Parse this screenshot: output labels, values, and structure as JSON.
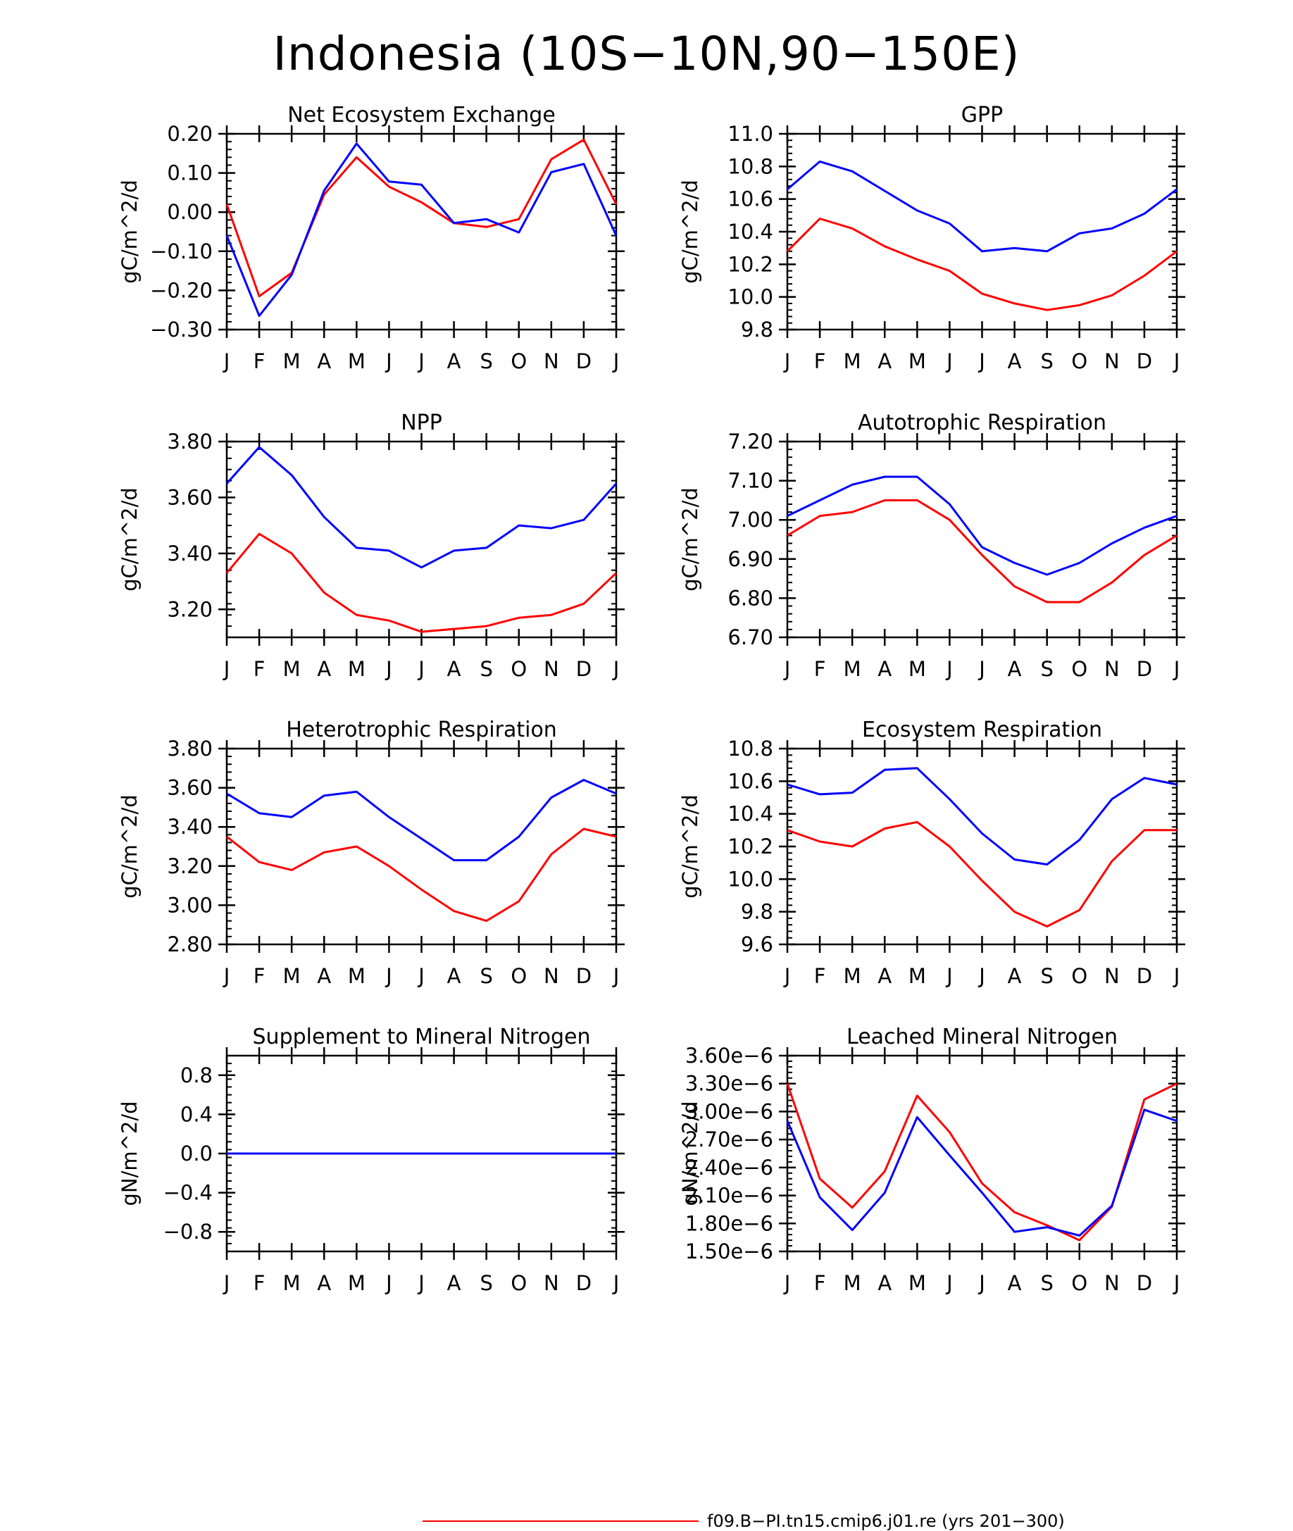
{
  "title": "Indonesia (10S−10N,90−150E)",
  "legend": {
    "label": "f09.B−PI.tn15.cmip6.j01.re (yrs 201−300)",
    "color": "#ff0000"
  },
  "colors": {
    "red": "#ff0000",
    "blue": "#0000ff"
  },
  "chart_data": [
    {
      "type": "line",
      "title": "Net Ecosystem Exchange",
      "ylabel": "gC/m^2/d",
      "categories": [
        "J",
        "F",
        "M",
        "A",
        "M",
        "J",
        "J",
        "A",
        "S",
        "O",
        "N",
        "D",
        "J"
      ],
      "ylim": [
        -0.3,
        0.2
      ],
      "yticks": [
        0.2,
        0.1,
        0.0,
        -0.1,
        -0.2,
        -0.3
      ],
      "ytick_labels": [
        "0.20",
        "0.10",
        "0.00",
        "−0.10",
        "−0.20",
        "−0.30"
      ],
      "series": [
        {
          "color": "#ff0000",
          "values": [
            0.02,
            -0.215,
            -0.155,
            0.045,
            0.14,
            0.065,
            0.025,
            -0.028,
            -0.038,
            -0.018,
            0.135,
            0.185,
            0.02
          ]
        },
        {
          "color": "#0000ff",
          "values": [
            -0.06,
            -0.265,
            -0.16,
            0.055,
            0.175,
            0.078,
            0.07,
            -0.028,
            -0.018,
            -0.052,
            0.102,
            0.123,
            -0.06
          ]
        }
      ]
    },
    {
      "type": "line",
      "title": "GPP",
      "ylabel": "gC/m^2/d",
      "categories": [
        "J",
        "F",
        "M",
        "A",
        "M",
        "J",
        "J",
        "A",
        "S",
        "O",
        "N",
        "D",
        "J"
      ],
      "ylim": [
        9.8,
        11.0
      ],
      "yticks": [
        11.0,
        10.8,
        10.6,
        10.4,
        10.2,
        10.0,
        9.8
      ],
      "ytick_labels": [
        "11.0",
        "10.8",
        "10.6",
        "10.4",
        "10.2",
        "10.0",
        "9.8"
      ],
      "series": [
        {
          "color": "#ff0000",
          "values": [
            10.28,
            10.48,
            10.42,
            10.31,
            10.23,
            10.16,
            10.02,
            9.96,
            9.92,
            9.95,
            10.01,
            10.13,
            10.28
          ]
        },
        {
          "color": "#0000ff",
          "values": [
            10.66,
            10.83,
            10.77,
            10.65,
            10.53,
            10.45,
            10.28,
            10.3,
            10.28,
            10.39,
            10.42,
            10.51,
            10.66
          ]
        }
      ]
    },
    {
      "type": "line",
      "title": "NPP",
      "ylabel": "gC/m^2/d",
      "categories": [
        "J",
        "F",
        "M",
        "A",
        "M",
        "J",
        "J",
        "A",
        "S",
        "O",
        "N",
        "D",
        "J"
      ],
      "ylim": [
        3.1,
        3.8
      ],
      "yticks": [
        3.8,
        3.6,
        3.4,
        3.2
      ],
      "ytick_labels": [
        "3.80",
        "3.60",
        "3.40",
        "3.20"
      ],
      "series": [
        {
          "color": "#ff0000",
          "values": [
            3.33,
            3.47,
            3.4,
            3.26,
            3.18,
            3.16,
            3.12,
            3.13,
            3.14,
            3.17,
            3.18,
            3.22,
            3.33
          ]
        },
        {
          "color": "#0000ff",
          "values": [
            3.65,
            3.78,
            3.68,
            3.53,
            3.42,
            3.41,
            3.35,
            3.41,
            3.42,
            3.5,
            3.49,
            3.52,
            3.65
          ]
        }
      ]
    },
    {
      "type": "line",
      "title": "Autotrophic Respiration",
      "ylabel": "gC/m^2/d",
      "categories": [
        "J",
        "F",
        "M",
        "A",
        "M",
        "J",
        "J",
        "A",
        "S",
        "O",
        "N",
        "D",
        "J"
      ],
      "ylim": [
        6.7,
        7.2
      ],
      "yticks": [
        7.2,
        7.1,
        7.0,
        6.9,
        6.8,
        6.7
      ],
      "ytick_labels": [
        "7.20",
        "7.10",
        "7.00",
        "6.90",
        "6.80",
        "6.70"
      ],
      "series": [
        {
          "color": "#ff0000",
          "values": [
            6.96,
            7.01,
            7.02,
            7.05,
            7.05,
            7.0,
            6.91,
            6.83,
            6.79,
            6.79,
            6.84,
            6.91,
            6.96
          ]
        },
        {
          "color": "#0000ff",
          "values": [
            7.01,
            7.05,
            7.09,
            7.11,
            7.11,
            7.04,
            6.93,
            6.89,
            6.86,
            6.89,
            6.94,
            6.98,
            7.01
          ]
        }
      ]
    },
    {
      "type": "line",
      "title": "Heterotrophic Respiration",
      "ylabel": "gC/m^2/d",
      "categories": [
        "J",
        "F",
        "M",
        "A",
        "M",
        "J",
        "J",
        "A",
        "S",
        "O",
        "N",
        "D",
        "J"
      ],
      "ylim": [
        2.8,
        3.8
      ],
      "yticks": [
        3.8,
        3.6,
        3.4,
        3.2,
        3.0,
        2.8
      ],
      "ytick_labels": [
        "3.80",
        "3.60",
        "3.40",
        "3.20",
        "3.00",
        "2.80"
      ],
      "series": [
        {
          "color": "#ff0000",
          "values": [
            3.35,
            3.22,
            3.18,
            3.27,
            3.3,
            3.2,
            3.08,
            2.97,
            2.92,
            3.02,
            3.26,
            3.39,
            3.35
          ]
        },
        {
          "color": "#0000ff",
          "values": [
            3.57,
            3.47,
            3.45,
            3.56,
            3.58,
            3.45,
            3.34,
            3.23,
            3.23,
            3.35,
            3.55,
            3.64,
            3.57
          ]
        }
      ]
    },
    {
      "type": "line",
      "title": "Ecosystem Respiration",
      "ylabel": "gC/m^2/d",
      "categories": [
        "J",
        "F",
        "M",
        "A",
        "M",
        "J",
        "J",
        "A",
        "S",
        "O",
        "N",
        "D",
        "J"
      ],
      "ylim": [
        9.6,
        10.8
      ],
      "yticks": [
        10.8,
        10.6,
        10.4,
        10.2,
        10.0,
        9.8,
        9.6
      ],
      "ytick_labels": [
        "10.8",
        "10.6",
        "10.4",
        "10.2",
        "10.0",
        "9.8",
        "9.6"
      ],
      "series": [
        {
          "color": "#ff0000",
          "values": [
            10.3,
            10.23,
            10.2,
            10.31,
            10.35,
            10.2,
            9.99,
            9.8,
            9.71,
            9.81,
            10.11,
            10.3,
            10.3
          ]
        },
        {
          "color": "#0000ff",
          "values": [
            10.58,
            10.52,
            10.53,
            10.67,
            10.68,
            10.49,
            10.28,
            10.12,
            10.09,
            10.24,
            10.49,
            10.62,
            10.58
          ]
        }
      ]
    },
    {
      "type": "line",
      "title": "Supplement to Mineral Nitrogen",
      "ylabel": "gN/m^2/d",
      "categories": [
        "J",
        "F",
        "M",
        "A",
        "M",
        "J",
        "J",
        "A",
        "S",
        "O",
        "N",
        "D",
        "J"
      ],
      "ylim": [
        -1.0,
        1.0
      ],
      "yticks": [
        0.8,
        0.4,
        0.0,
        -0.4,
        -0.8
      ],
      "ytick_labels": [
        "0.8",
        "0.4",
        "0.0",
        "−0.4",
        "−0.8"
      ],
      "series": [
        {
          "color": "#ff0000",
          "values": [
            0,
            0,
            0,
            0,
            0,
            0,
            0,
            0,
            0,
            0,
            0,
            0,
            0
          ]
        },
        {
          "color": "#0000ff",
          "values": [
            0,
            0,
            0,
            0,
            0,
            0,
            0,
            0,
            0,
            0,
            0,
            0,
            0
          ]
        }
      ]
    },
    {
      "type": "line",
      "title": "Leached Mineral Nitrogen",
      "ylabel": "gN/m^2/d",
      "categories": [
        "J",
        "F",
        "M",
        "A",
        "M",
        "J",
        "J",
        "A",
        "S",
        "O",
        "N",
        "D",
        "J"
      ],
      "ylim": [
        1.5e-06,
        3.6e-06
      ],
      "yticks": [
        3.6e-06,
        3.3e-06,
        3e-06,
        2.7e-06,
        2.4e-06,
        2.1e-06,
        1.8e-06,
        1.5e-06
      ],
      "ytick_labels": [
        "3.60e−6",
        "3.30e−6",
        "3.00e−6",
        "2.70e−6",
        "2.40e−6",
        "2.10e−6",
        "1.80e−6",
        "1.50e−6"
      ],
      "series": [
        {
          "color": "#ff0000",
          "values": [
            3.3e-06,
            2.28e-06,
            1.97e-06,
            2.36e-06,
            3.17e-06,
            2.78e-06,
            2.23e-06,
            1.92e-06,
            1.78e-06,
            1.62e-06,
            1.98e-06,
            3.13e-06,
            3.3e-06
          ]
        },
        {
          "color": "#0000ff",
          "values": [
            2.9e-06,
            2.08e-06,
            1.73e-06,
            2.13e-06,
            2.94e-06,
            2.53e-06,
            2.13e-06,
            1.71e-06,
            1.76e-06,
            1.67e-06,
            1.99e-06,
            3.02e-06,
            2.9e-06
          ]
        }
      ]
    }
  ]
}
